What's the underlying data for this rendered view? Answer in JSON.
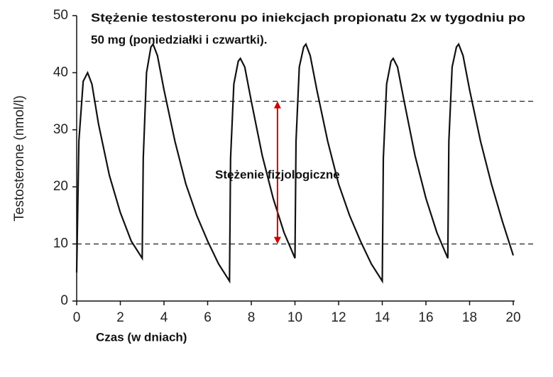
{
  "chart_data": {
    "type": "line",
    "title": [
      "Stężenie testosteronu po iniekcjach propionatu 2x w tygodniu po",
      "50 mg (poniedziałki i czwartki)."
    ],
    "x_label": "Czas (w dniach)",
    "y_label": "Testosterone (nmol/l)",
    "annotation": "Stężenie fizjologiczne",
    "reference_lines": [
      35,
      10
    ],
    "arrow": {
      "x": 9.2,
      "from": 35,
      "to": 10,
      "color": "#d00000"
    },
    "x": [
      0,
      0.1,
      0.3,
      0.5,
      0.7,
      1,
      1.5,
      2,
      2.5,
      3,
      3.05,
      3.2,
      3.4,
      3.5,
      3.7,
      4,
      4.5,
      5,
      5.5,
      6,
      6.5,
      7,
      7.05,
      7.2,
      7.4,
      7.5,
      7.7,
      8,
      8.5,
      9,
      9.5,
      10,
      10.05,
      10.2,
      10.4,
      10.5,
      10.7,
      11,
      11.5,
      12,
      12.5,
      13,
      13.5,
      14,
      14.05,
      14.2,
      14.4,
      14.5,
      14.7,
      15,
      15.5,
      16,
      16.5,
      17,
      17.05,
      17.2,
      17.4,
      17.5,
      17.7,
      18,
      18.5,
      19,
      19.5,
      20
    ],
    "series": [
      {
        "color": "#111111",
        "values": [
          5,
          28,
          38.5,
          40,
          38,
          31,
          22,
          15.5,
          10.5,
          7.5,
          25,
          40,
          44.5,
          45,
          43,
          37,
          28,
          20.5,
          15,
          10.5,
          6.5,
          3.5,
          25,
          38,
          42,
          42.5,
          41,
          35,
          25.5,
          18,
          12,
          7.5,
          28,
          41,
          44.5,
          45,
          43,
          37,
          28,
          20.5,
          15,
          10.5,
          6.5,
          3.5,
          25,
          38,
          42,
          42.5,
          41,
          35,
          25.5,
          18,
          12,
          7.5,
          28,
          41,
          44.5,
          45,
          43,
          37,
          28,
          20.5,
          14,
          8
        ]
      }
    ],
    "xlim": [
      0,
      20
    ],
    "ylim": [
      0,
      50
    ],
    "xticks": [
      0,
      2,
      4,
      6,
      8,
      10,
      12,
      14,
      16,
      18,
      20
    ],
    "yticks": [
      0,
      10,
      20,
      30,
      40,
      50
    ]
  }
}
